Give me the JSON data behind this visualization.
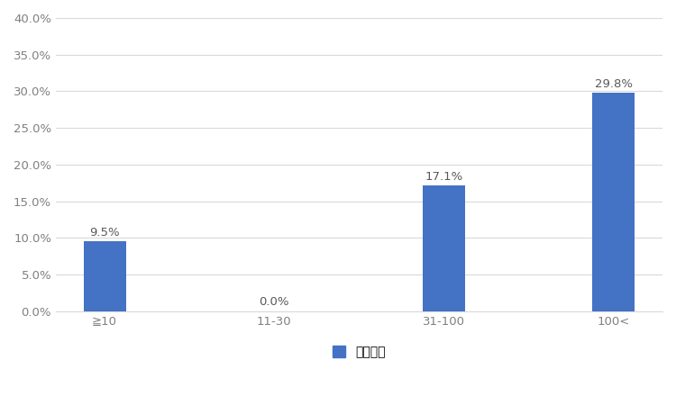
{
  "categories": [
    "≧10",
    "11-30",
    "31-100",
    "100<"
  ],
  "values": [
    9.5,
    0.0,
    17.1,
    29.8
  ],
  "bar_color": "#4472C4",
  "ylim": [
    0,
    40
  ],
  "yticks": [
    0,
    5,
    10,
    15,
    20,
    25,
    30,
    35,
    40
  ],
  "legend_label": "延期する",
  "background_color": "#FFFFFF",
  "bar_width": 0.25,
  "label_fontsize": 9.5,
  "tick_fontsize": 9.5,
  "legend_fontsize": 10,
  "grid_color": "#D9D9D9",
  "tick_label_color": "#808080"
}
